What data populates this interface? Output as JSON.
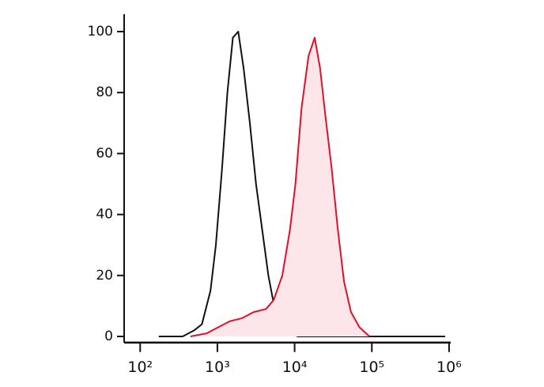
{
  "chart_data": {
    "type": "histogram-overlay",
    "xscale": "log",
    "xlim": [
      62,
      1050000
    ],
    "ylim": [
      -2,
      102
    ],
    "xticks": [
      {
        "value": 100,
        "label": "10²"
      },
      {
        "value": 1000,
        "label": "10³"
      },
      {
        "value": 10000,
        "label": "10⁴"
      },
      {
        "value": 100000,
        "label": "10⁵"
      },
      {
        "value": 1000000,
        "label": "10⁶"
      }
    ],
    "yticks": [
      0,
      20,
      40,
      60,
      80,
      100
    ],
    "series": [
      {
        "color": "#111111",
        "fill": "none",
        "x": [
          174,
          355,
          501,
          631,
          813,
          955,
          1148,
          1349,
          1585,
          1862,
          2188,
          2630,
          3162,
          3802,
          4571,
          5623,
          7413,
          10965,
          891251
        ],
        "values": [
          0,
          0,
          2,
          4,
          15,
          30,
          55,
          80,
          98,
          100,
          88,
          70,
          50,
          35,
          20,
          8,
          2,
          0,
          0
        ]
      },
      {
        "color": "#e0102a",
        "fill": "#fde6e9",
        "x": [
          447,
          724,
          1023,
          1445,
          2089,
          2951,
          4266,
          5370,
          6918,
          8710,
          10233,
          12303,
          15136,
          18197,
          21380,
          25119,
          30200,
          36308,
          43652,
          53703,
          69183,
          93325
        ],
        "values": [
          0,
          1,
          3,
          5,
          6,
          8,
          9,
          12,
          20,
          35,
          50,
          75,
          92,
          98,
          88,
          72,
          55,
          35,
          18,
          8,
          3,
          0
        ]
      }
    ]
  }
}
